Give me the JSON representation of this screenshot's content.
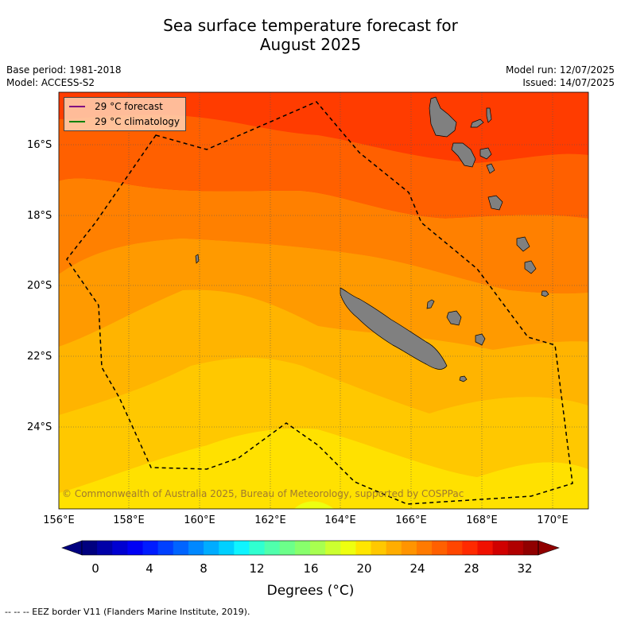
{
  "title": {
    "line1": "Sea surface temperature forecast for",
    "line2": "August 2025"
  },
  "meta_left": {
    "base_period": "Base period: 1981-2018",
    "model": "Model: ACCESS-S2"
  },
  "meta_right": {
    "model_run": "Model run: 12/07/2025",
    "issued": "Issued: 14/07/2025"
  },
  "map": {
    "lat_labels": [
      "16°S",
      "18°S",
      "20°S",
      "22°S",
      "24°S"
    ],
    "lon_labels": [
      "156°E",
      "158°E",
      "160°E",
      "162°E",
      "164°E",
      "166°E",
      "168°E",
      "170°E"
    ],
    "copyright": "© Commonwealth of Australia 2025, Bureau of Meteorology, supported by COSPPac",
    "land_color": "#808080",
    "eez_line_color": "#000000"
  },
  "legend": {
    "items": [
      {
        "label": "29 °C  forecast",
        "color": "#800080"
      },
      {
        "label": "29 °C  climatology",
        "color": "#008000"
      }
    ]
  },
  "colorbar": {
    "ticks": [
      "0",
      "4",
      "8",
      "12",
      "16",
      "20",
      "24",
      "28",
      "32"
    ],
    "label": "Degrees (°C)",
    "colors": [
      "#00007f",
      "#0000a8",
      "#0000d1",
      "#0000f5",
      "#001cff",
      "#0040ff",
      "#0064ff",
      "#0088ff",
      "#00acff",
      "#00d0ff",
      "#0ff4ff",
      "#30ffd0",
      "#50ffac",
      "#6cff8a",
      "#88ff6c",
      "#a8ff50",
      "#ccff30",
      "#eeff10",
      "#ffe600",
      "#ffc800",
      "#ffad00",
      "#ff9400",
      "#ff7a00",
      "#ff6000",
      "#ff4600",
      "#ff2a00",
      "#f01000",
      "#d00000",
      "#b00000",
      "#900000"
    ]
  },
  "footer": {
    "eez_note": "--  --  -- EEZ border V11 (Flanders Marine Institute, 2019)."
  }
}
